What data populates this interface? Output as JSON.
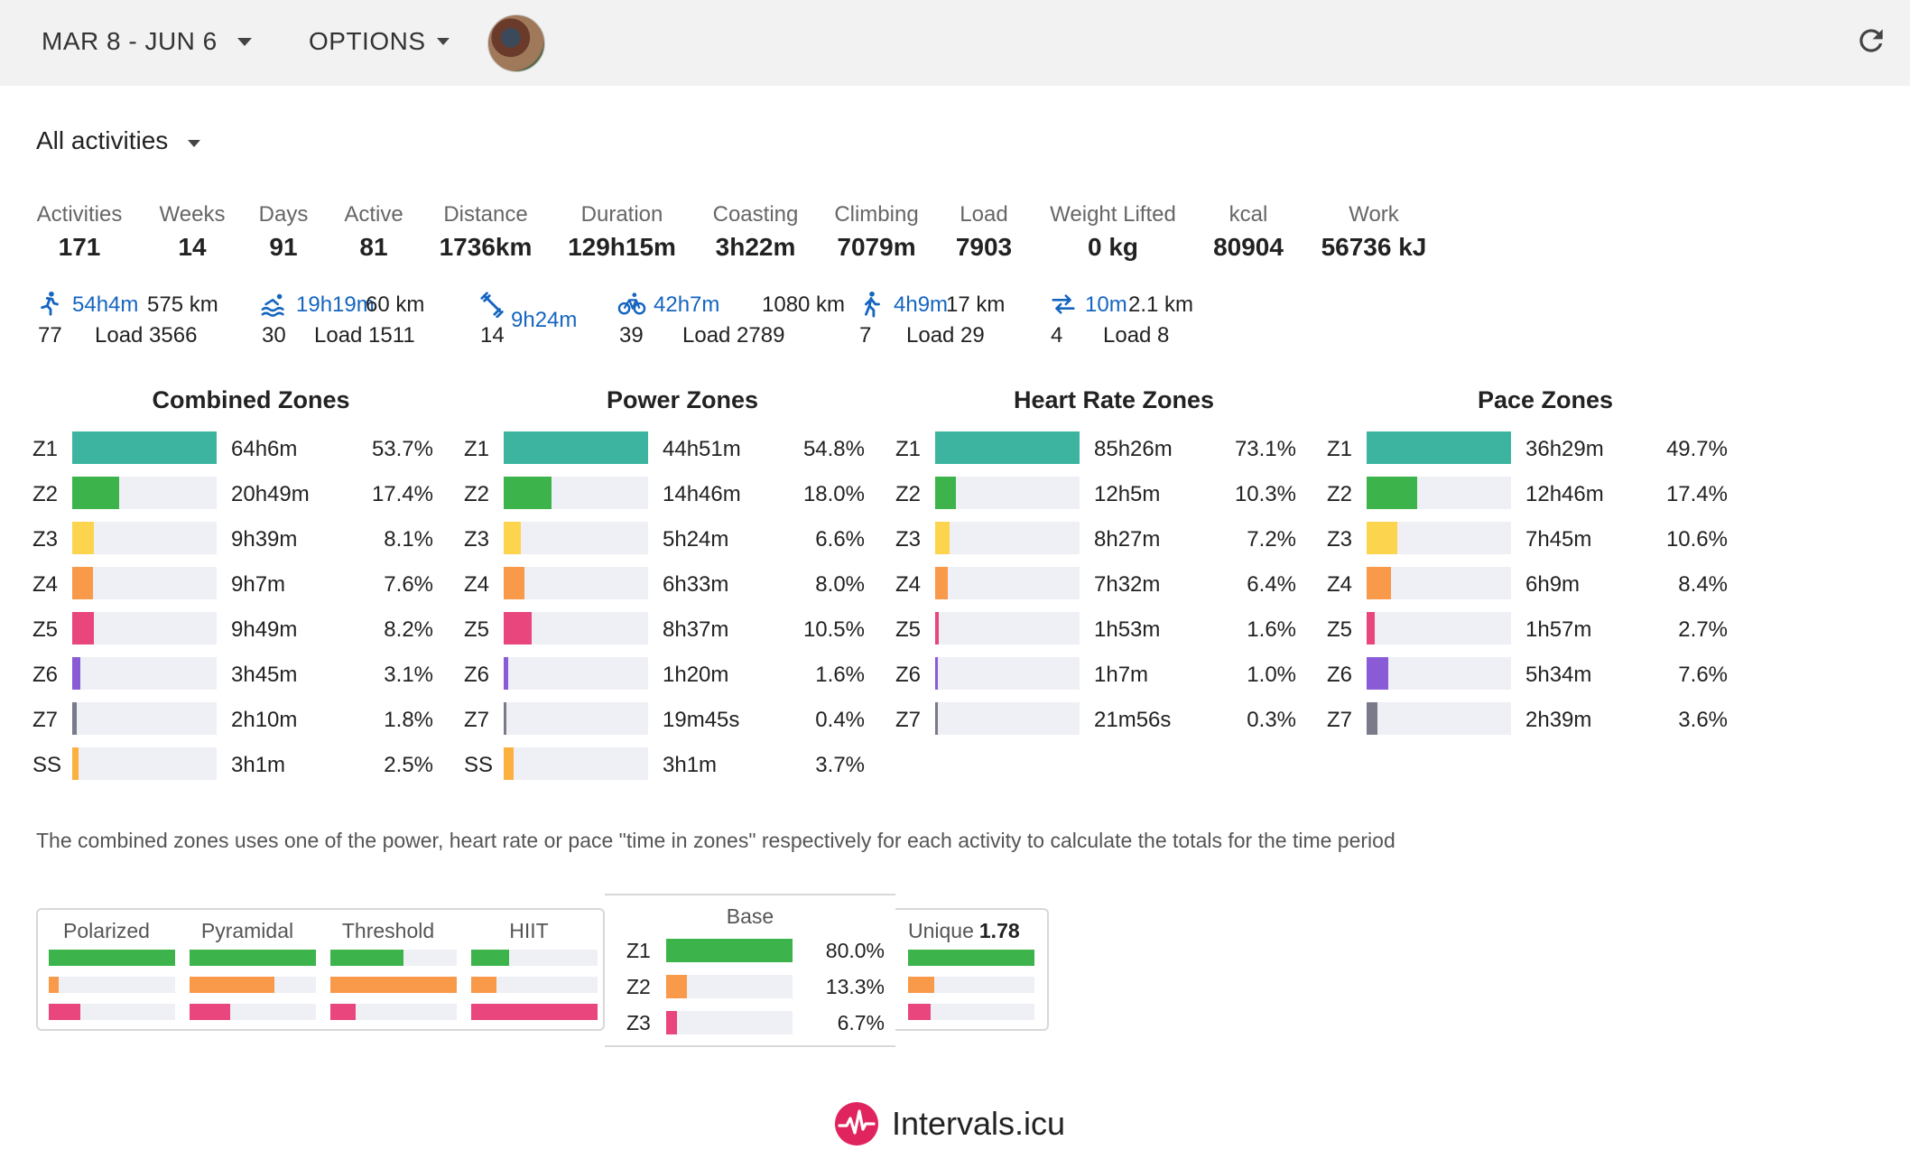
{
  "header": {
    "date_range": "MAR 8 - JUN 6",
    "options_label": "OPTIONS"
  },
  "filter": {
    "label": "All activities"
  },
  "stats": [
    {
      "label": "Activities",
      "value": "171"
    },
    {
      "label": "Weeks",
      "value": "14"
    },
    {
      "label": "Days",
      "value": "91"
    },
    {
      "label": "Active",
      "value": "81"
    },
    {
      "label": "Distance",
      "value": "1736km"
    },
    {
      "label": "Duration",
      "value": "129h15m"
    },
    {
      "label": "Coasting",
      "value": "3h22m"
    },
    {
      "label": "Climbing",
      "value": "7079m"
    },
    {
      "label": "Load",
      "value": "7903"
    },
    {
      "label": "Weight Lifted",
      "value": "0 kg"
    },
    {
      "label": "kcal",
      "value": "80904"
    },
    {
      "label": "Work",
      "value": "56736 kJ"
    }
  ],
  "sports": [
    {
      "icon": "run-icon",
      "duration": "54h4m",
      "distance": "575 km",
      "count": "77",
      "load": "Load 3566"
    },
    {
      "icon": "swim-icon",
      "duration": "19h19m",
      "distance": "60 km",
      "count": "30",
      "load": "Load 1511"
    },
    {
      "icon": "weight-training-icon",
      "duration": "9h24m",
      "distance": "",
      "count": "14",
      "load": ""
    },
    {
      "icon": "bike-icon",
      "duration": "42h7m",
      "distance": "1080 km",
      "count": "39",
      "load": "Load 2789"
    },
    {
      "icon": "walk-icon",
      "duration": "4h9m",
      "distance": "17 km",
      "count": "7",
      "load": "Load 29"
    },
    {
      "icon": "transition-icon",
      "duration": "10m",
      "distance": "2.1 km",
      "count": "4",
      "load": "Load 8"
    }
  ],
  "zone_colors": {
    "Z1": "#3db4a0",
    "Z2": "#3cb44b",
    "Z3": "#fdd44e",
    "Z4": "#f9994a",
    "Z5": "#e8467c",
    "Z6": "#8a5bd6",
    "Z7": "#7a7a8a",
    "SS": "#fbb040"
  },
  "zones": [
    {
      "title": "Combined Zones",
      "rows": [
        {
          "zone": "Z1",
          "time": "64h6m",
          "pct": "53.7%",
          "value": 53.7
        },
        {
          "zone": "Z2",
          "time": "20h49m",
          "pct": "17.4%",
          "value": 17.4
        },
        {
          "zone": "Z3",
          "time": "9h39m",
          "pct": "8.1%",
          "value": 8.1
        },
        {
          "zone": "Z4",
          "time": "9h7m",
          "pct": "7.6%",
          "value": 7.6
        },
        {
          "zone": "Z5",
          "time": "9h49m",
          "pct": "8.2%",
          "value": 8.2
        },
        {
          "zone": "Z6",
          "time": "3h45m",
          "pct": "3.1%",
          "value": 3.1
        },
        {
          "zone": "Z7",
          "time": "2h10m",
          "pct": "1.8%",
          "value": 1.8
        },
        {
          "zone": "SS",
          "time": "3h1m",
          "pct": "2.5%",
          "value": 2.5
        }
      ]
    },
    {
      "title": "Power Zones",
      "rows": [
        {
          "zone": "Z1",
          "time": "44h51m",
          "pct": "54.8%",
          "value": 54.8
        },
        {
          "zone": "Z2",
          "time": "14h46m",
          "pct": "18.0%",
          "value": 18.0
        },
        {
          "zone": "Z3",
          "time": "5h24m",
          "pct": "6.6%",
          "value": 6.6
        },
        {
          "zone": "Z4",
          "time": "6h33m",
          "pct": "8.0%",
          "value": 8.0
        },
        {
          "zone": "Z5",
          "time": "8h37m",
          "pct": "10.5%",
          "value": 10.5
        },
        {
          "zone": "Z6",
          "time": "1h20m",
          "pct": "1.6%",
          "value": 1.6
        },
        {
          "zone": "Z7",
          "time": "19m45s",
          "pct": "0.4%",
          "value": 0.4
        },
        {
          "zone": "SS",
          "time": "3h1m",
          "pct": "3.7%",
          "value": 3.7
        }
      ]
    },
    {
      "title": "Heart Rate Zones",
      "rows": [
        {
          "zone": "Z1",
          "time": "85h26m",
          "pct": "73.1%",
          "value": 73.1
        },
        {
          "zone": "Z2",
          "time": "12h5m",
          "pct": "10.3%",
          "value": 10.3
        },
        {
          "zone": "Z3",
          "time": "8h27m",
          "pct": "7.2%",
          "value": 7.2
        },
        {
          "zone": "Z4",
          "time": "7h32m",
          "pct": "6.4%",
          "value": 6.4
        },
        {
          "zone": "Z5",
          "time": "1h53m",
          "pct": "1.6%",
          "value": 1.6
        },
        {
          "zone": "Z6",
          "time": "1h7m",
          "pct": "1.0%",
          "value": 1.0
        },
        {
          "zone": "Z7",
          "time": "21m56s",
          "pct": "0.3%",
          "value": 0.3
        }
      ]
    },
    {
      "title": "Pace Zones",
      "rows": [
        {
          "zone": "Z1",
          "time": "36h29m",
          "pct": "49.7%",
          "value": 49.7
        },
        {
          "zone": "Z2",
          "time": "12h46m",
          "pct": "17.4%",
          "value": 17.4
        },
        {
          "zone": "Z3",
          "time": "7h45m",
          "pct": "10.6%",
          "value": 10.6
        },
        {
          "zone": "Z4",
          "time": "6h9m",
          "pct": "8.4%",
          "value": 8.4
        },
        {
          "zone": "Z5",
          "time": "1h57m",
          "pct": "2.7%",
          "value": 2.7
        },
        {
          "zone": "Z6",
          "time": "5h34m",
          "pct": "7.6%",
          "value": 7.6
        },
        {
          "zone": "Z7",
          "time": "2h39m",
          "pct": "3.6%",
          "value": 3.6
        }
      ]
    }
  ],
  "note": "The combined zones uses one of the power, heart rate or pace \"time in zones\" respectively for each activity to calculate the totals for the time period",
  "polarization": {
    "models": [
      {
        "name": "Polarized",
        "z1": 1.0,
        "z2": 0.08,
        "z3": 0.25
      },
      {
        "name": "Pyramidal",
        "z1": 1.0,
        "z2": 0.67,
        "z3": 0.32
      },
      {
        "name": "Threshold",
        "z1": 0.58,
        "z2": 1.0,
        "z3": 0.2
      },
      {
        "name": "HIIT",
        "z1": 0.3,
        "z2": 0.2,
        "z3": 1.0
      }
    ],
    "base": {
      "title": "Base",
      "rows": [
        {
          "zone": "Z1",
          "pct": "80.0%",
          "value": 80.0
        },
        {
          "zone": "Z2",
          "pct": "13.3%",
          "value": 13.3
        },
        {
          "zone": "Z3",
          "pct": "6.7%",
          "value": 6.7
        }
      ]
    },
    "unique": {
      "label": "Unique",
      "value": "1.78",
      "z1": 1.0,
      "z2": 0.21,
      "z3": 0.18
    }
  },
  "footer": {
    "brand": "Intervals.icu",
    "brand_color": "#e0245e"
  }
}
